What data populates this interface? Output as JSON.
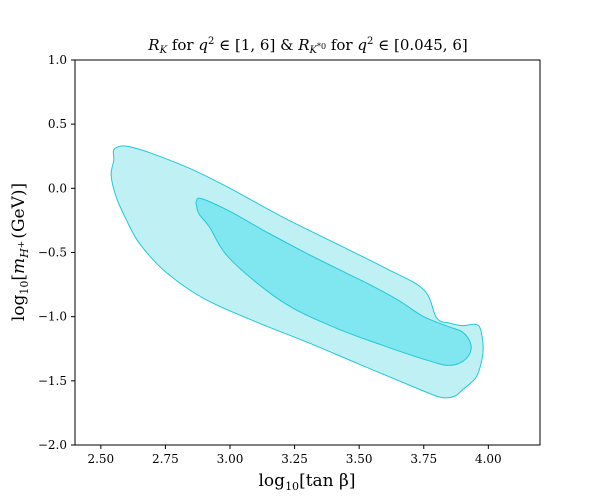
{
  "chart_data": {
    "type": "area",
    "title": "R_K for q² ∈ [1, 6] & R_{K*0} for q² ∈ [0.045, 6]",
    "title_parts": {
      "rk_symbol": "R",
      "rk_sub": "K",
      "text1": " for ",
      "q_symbol": "q",
      "q_sup": "2",
      "range1": " ∈ [1, 6] & ",
      "rkstar_symbol": "R",
      "rkstar_sub": "K",
      "rkstar_subsup": "*0",
      "text2": " for ",
      "q2_symbol": "q",
      "q2_sup": "2",
      "range2": " ∈ [0.045, 6]"
    },
    "xlabel": "log10[tan β]",
    "xlabel_parts": {
      "prefix": "log",
      "sub": "10",
      "body": "[tan β]"
    },
    "ylabel": "log10[m_{H+} (GeV)]",
    "ylabel_parts": {
      "prefix": "log",
      "sub": "10",
      "open": "[",
      "m": "m",
      "msub": "H",
      "msubsup": "+",
      "rest": "(GeV)]"
    },
    "xlim": [
      2.4,
      4.2
    ],
    "ylim": [
      -2.0,
      1.0
    ],
    "x_ticks": [
      {
        "value": 2.5,
        "label": "2.50"
      },
      {
        "value": 2.75,
        "label": "2.75"
      },
      {
        "value": 3.0,
        "label": "3.00"
      },
      {
        "value": 3.25,
        "label": "3.25"
      },
      {
        "value": 3.5,
        "label": "3.50"
      },
      {
        "value": 3.75,
        "label": "3.75"
      },
      {
        "value": 4.0,
        "label": "4.00"
      }
    ],
    "y_ticks": [
      {
        "value": 1.0,
        "label": "1.0"
      },
      {
        "value": 0.5,
        "label": "0.5"
      },
      {
        "value": 0.0,
        "label": "0.0"
      },
      {
        "value": -0.5,
        "label": "−0.5"
      },
      {
        "value": -1.0,
        "label": "−1.0"
      },
      {
        "value": -1.5,
        "label": "−1.5"
      },
      {
        "value": -2.0,
        "label": "−2.0"
      }
    ],
    "grid": false,
    "series": [
      {
        "level": "outer",
        "color": "#bff0f3",
        "edge_color": "#22c8d6",
        "points": [
          [
            2.55,
            0.3
          ],
          [
            2.58,
            0.33
          ],
          [
            2.62,
            0.32
          ],
          [
            2.7,
            0.27
          ],
          [
            2.85,
            0.15
          ],
          [
            3.0,
            0.0
          ],
          [
            3.2,
            -0.22
          ],
          [
            3.4,
            -0.42
          ],
          [
            3.6,
            -0.62
          ],
          [
            3.75,
            -0.79
          ],
          [
            3.8,
            -1.01
          ],
          [
            3.85,
            -1.05
          ],
          [
            3.9,
            -1.07
          ],
          [
            3.95,
            -1.06
          ],
          [
            3.97,
            -1.1
          ],
          [
            3.98,
            -1.25
          ],
          [
            3.97,
            -1.38
          ],
          [
            3.95,
            -1.48
          ],
          [
            3.9,
            -1.57
          ],
          [
            3.87,
            -1.62
          ],
          [
            3.82,
            -1.63
          ],
          [
            3.75,
            -1.58
          ],
          [
            3.5,
            -1.37
          ],
          [
            3.3,
            -1.2
          ],
          [
            3.1,
            -1.04
          ],
          [
            2.9,
            -0.86
          ],
          [
            2.75,
            -0.65
          ],
          [
            2.65,
            -0.43
          ],
          [
            2.6,
            -0.25
          ],
          [
            2.56,
            -0.07
          ],
          [
            2.54,
            0.1
          ],
          [
            2.55,
            0.22
          ]
        ]
      },
      {
        "level": "inner",
        "color": "#80e6f0",
        "edge_color": "#22c8d6",
        "points": [
          [
            2.87,
            -0.1
          ],
          [
            2.89,
            -0.08
          ],
          [
            3.0,
            -0.18
          ],
          [
            3.15,
            -0.35
          ],
          [
            3.3,
            -0.51
          ],
          [
            3.45,
            -0.66
          ],
          [
            3.55,
            -0.76
          ],
          [
            3.65,
            -0.87
          ],
          [
            3.75,
            -1.0
          ],
          [
            3.85,
            -1.08
          ],
          [
            3.9,
            -1.12
          ],
          [
            3.93,
            -1.2
          ],
          [
            3.93,
            -1.28
          ],
          [
            3.9,
            -1.35
          ],
          [
            3.85,
            -1.38
          ],
          [
            3.78,
            -1.35
          ],
          [
            3.6,
            -1.23
          ],
          [
            3.4,
            -1.08
          ],
          [
            3.2,
            -0.88
          ],
          [
            3.0,
            -0.55
          ],
          [
            2.92,
            -0.3
          ],
          [
            2.88,
            -0.2
          ],
          [
            2.87,
            -0.13
          ]
        ]
      }
    ]
  }
}
